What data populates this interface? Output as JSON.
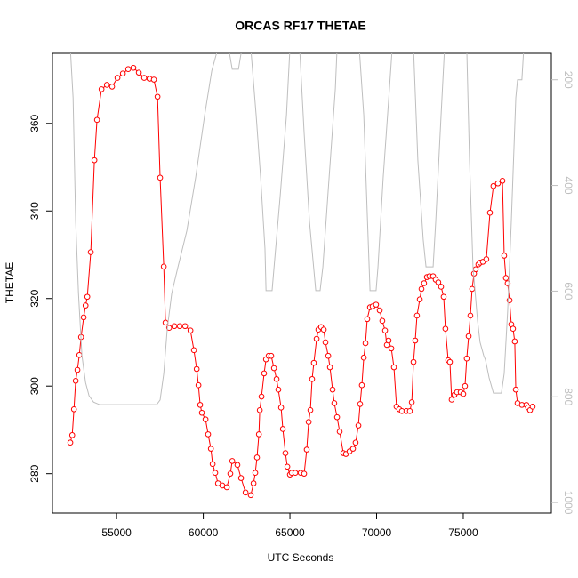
{
  "chart_data": {
    "type": "line",
    "title": "ORCAS RF17 THETAE",
    "x_label": "UTC Seconds",
    "y_label": "THETAE",
    "xlim": [
      51300,
      80080
    ],
    "xticks": [
      55000,
      60000,
      65000,
      70000,
      75000
    ],
    "ylim": [
      271,
      376
    ],
    "yticks": [
      280,
      300,
      320,
      340,
      360
    ],
    "y2lim": [
      1020,
      150
    ],
    "y2ticks": [
      200,
      400,
      600,
      800,
      1000
    ],
    "y2_color": "#bebebe",
    "series": [
      {
        "color": "#ff0000",
        "markers": true,
        "x": [
          52330,
          52440,
          52540,
          52640,
          52740,
          52850,
          52950,
          53100,
          53210,
          53310,
          53510,
          53720,
          53870,
          54130,
          54440,
          54740,
          55050,
          55360,
          55670,
          55970,
          56280,
          56590,
          56900,
          57150,
          57360,
          57510,
          57720,
          57820,
          58030,
          58330,
          58640,
          58950,
          59260,
          59460,
          59620,
          59720,
          59820,
          59920,
          60130,
          60280,
          60440,
          60540,
          60690,
          60850,
          61100,
          61360,
          61560,
          61670,
          61970,
          62180,
          62440,
          62740,
          62900,
          63000,
          63100,
          63210,
          63260,
          63360,
          63510,
          63620,
          63770,
          63920,
          64080,
          64230,
          64330,
          64490,
          64590,
          64740,
          64850,
          65000,
          65100,
          65310,
          65620,
          65820,
          65970,
          66080,
          66180,
          66280,
          66380,
          66540,
          66640,
          66800,
          66950,
          67050,
          67210,
          67310,
          67460,
          67560,
          67720,
          67870,
          68080,
          68230,
          68440,
          68640,
          68790,
          68950,
          69050,
          69150,
          69260,
          69360,
          69460,
          69620,
          69770,
          69970,
          70180,
          70330,
          70490,
          70590,
          70690,
          70850,
          71000,
          71150,
          71310,
          71460,
          71720,
          71920,
          72030,
          72130,
          72230,
          72330,
          72490,
          72590,
          72740,
          72900,
          73050,
          73260,
          73410,
          73560,
          73720,
          73870,
          73970,
          74130,
          74230,
          74330,
          74490,
          74640,
          74850,
          75000,
          75100,
          75200,
          75310,
          75410,
          75510,
          75620,
          75720,
          75870,
          75970,
          76130,
          76330,
          76540,
          76740,
          77000,
          77260,
          77360,
          77460,
          77560,
          77670,
          77770,
          77870,
          77970,
          78030,
          78130,
          78380,
          78640,
          78740,
          78850,
          79000
        ],
        "values": [
          287.1,
          288.8,
          294.7,
          301.2,
          303.7,
          307.1,
          311.2,
          315.7,
          318.4,
          320.4,
          330.6,
          351.6,
          360.8,
          367.8,
          368.8,
          368.4,
          370.4,
          371.4,
          372.4,
          372.7,
          371.6,
          370.4,
          370.2,
          370.0,
          366.1,
          347.6,
          327.3,
          314.5,
          313.3,
          313.7,
          313.7,
          313.7,
          312.7,
          308.2,
          303.9,
          300.2,
          295.7,
          293.9,
          292.4,
          289.0,
          285.7,
          282.2,
          280.2,
          277.8,
          277.3,
          276.9,
          280.0,
          282.9,
          282.0,
          279.0,
          275.7,
          275.1,
          277.8,
          280.2,
          283.7,
          289.0,
          294.5,
          297.6,
          302.9,
          306.1,
          306.9,
          306.9,
          304.1,
          301.6,
          299.2,
          295.1,
          290.2,
          284.7,
          281.6,
          279.8,
          280.2,
          280.2,
          280.2,
          280.0,
          285.5,
          291.8,
          294.5,
          301.6,
          305.3,
          310.8,
          312.9,
          313.5,
          312.9,
          310.0,
          306.9,
          304.3,
          299.2,
          296.1,
          292.9,
          289.6,
          284.7,
          284.5,
          285.1,
          285.7,
          287.1,
          291.0,
          295.9,
          300.2,
          306.5,
          309.8,
          315.3,
          318.0,
          318.2,
          318.6,
          317.3,
          314.9,
          312.7,
          309.4,
          310.4,
          308.6,
          304.3,
          295.3,
          294.7,
          294.3,
          294.3,
          294.3,
          296.3,
          305.5,
          310.4,
          316.1,
          319.8,
          322.2,
          323.5,
          324.9,
          325.1,
          325.1,
          324.3,
          323.7,
          322.7,
          320.4,
          313.1,
          305.9,
          305.5,
          296.9,
          298.0,
          298.6,
          298.6,
          298.2,
          300.0,
          306.3,
          311.4,
          316.1,
          322.2,
          325.7,
          326.7,
          327.8,
          328.2,
          328.4,
          329.0,
          339.6,
          345.7,
          346.3,
          346.9,
          329.8,
          324.7,
          323.5,
          319.6,
          314.1,
          313.1,
          310.2,
          299.2,
          296.1,
          295.7,
          295.7,
          295.1,
          294.5,
          295.3
        ]
      },
      {
        "color": "#bebebe",
        "axis": "y2",
        "markers": false,
        "x": [
          52330,
          52490,
          52640,
          52800,
          53000,
          53210,
          53410,
          53670,
          54030,
          57310,
          57510,
          57720,
          57920,
          58180,
          58540,
          59050,
          59560,
          60080,
          60490,
          60850,
          61460,
          61670,
          62030,
          62230,
          62740,
          63050,
          63310,
          63560,
          63620,
          63970,
          64130,
          64440,
          64800,
          65000,
          65560,
          65820,
          66130,
          66490,
          66740,
          66900,
          67260,
          67620,
          67720,
          69000,
          69260,
          69460,
          69620,
          69970,
          70080,
          70380,
          70740,
          70900,
          72130,
          72380,
          72690,
          72850,
          73260,
          73410,
          73720,
          73920,
          75200,
          75360,
          75560,
          75820,
          75970,
          76180,
          76280,
          76490,
          76740,
          77200,
          77360,
          77560,
          77770,
          78030,
          78130,
          78380,
          78490
        ],
        "values": [
          140,
          234,
          469,
          604,
          722,
          773,
          798,
          810,
          815,
          815,
          806,
          756,
          672,
          604,
          554,
          486,
          385,
          267,
          183,
          140,
          140,
          180,
          180,
          140,
          140,
          267,
          385,
          520,
          599,
          599,
          537,
          419,
          267,
          140,
          140,
          301,
          469,
          599,
          599,
          554,
          385,
          217,
          140,
          140,
          267,
          453,
          599,
          599,
          554,
          385,
          217,
          140,
          140,
          352,
          503,
          554,
          554,
          469,
          267,
          140,
          140,
          352,
          554,
          655,
          697,
          722,
          730,
          764,
          793,
          793,
          756,
          638,
          469,
          234,
          200,
          200,
          140
        ]
      }
    ]
  }
}
